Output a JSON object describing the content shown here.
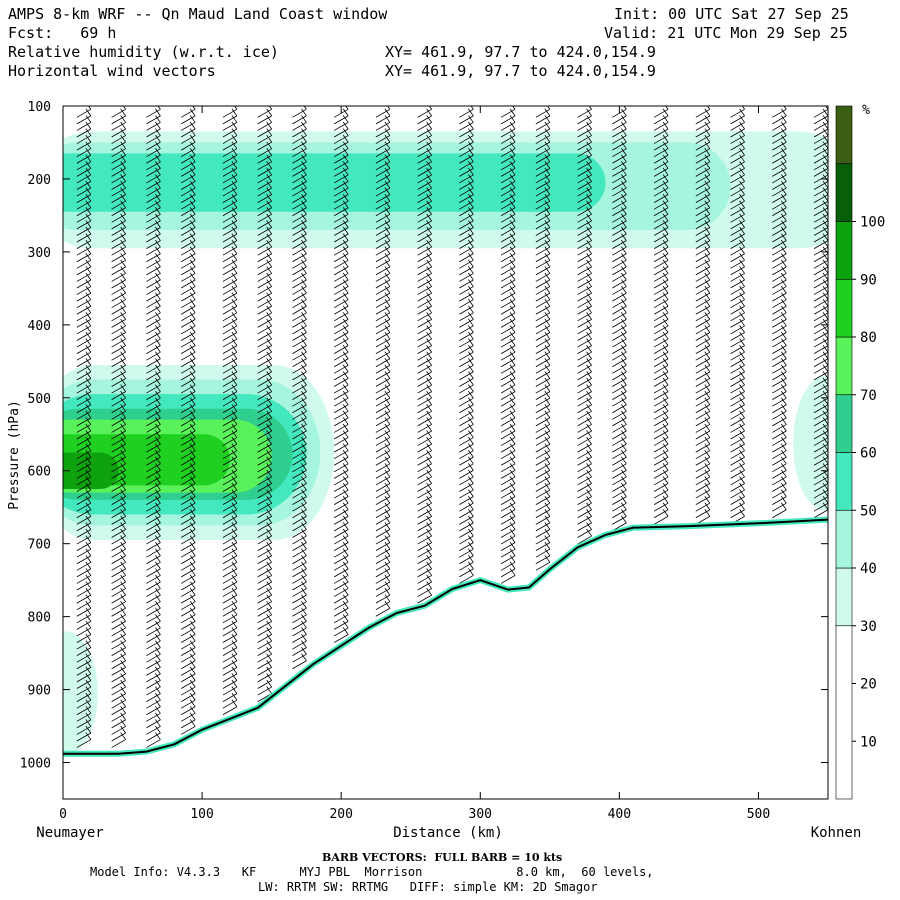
{
  "header": {
    "title": "AMPS 8-km WRF -- Qn Maud Land Coast window",
    "fcst": "Fcst:   69 h",
    "field1": "Relative humidity (w.r.t. ice)",
    "field2": "Horizontal wind vectors",
    "xy1": "XY= 461.9, 97.7 to 424.0,154.9",
    "xy2": "XY= 461.9, 97.7 to 424.0,154.9",
    "init": "Init: 00 UTC Sat 27 Sep 25",
    "valid": "Valid: 21 UTC Mon 29 Sep 25"
  },
  "footer": {
    "barb_note": "BARB VECTORS:  FULL BARB = 10 kts",
    "model_line1": "Model Info: V4.3.3   KF      MYJ PBL  Morrison             8.0 km,  60 levels,",
    "model_line2": "LW: RRTM SW: RRTMG   DIFF: simple KM: 2D Smagor"
  },
  "colors": {
    "c30": "#d0fbec",
    "c40": "#a6f5df",
    "c50": "#44e8be",
    "c60": "#2fd08f",
    "c70": "#5af25a",
    "c80": "#20d020",
    "c90": "#0ea30e",
    "c100": "#075f07",
    "c110": "#3b5f12",
    "terrain": "#000000"
  },
  "chart_data": {
    "type": "heatmap",
    "title": "Relative humidity (w.r.t. ice)",
    "xlabel": "Distance (km)",
    "ylabel": "Pressure (hPa)",
    "xlim": [
      0,
      550
    ],
    "ylim": [
      1050,
      100
    ],
    "x_ticks": [
      0,
      100,
      200,
      300,
      400,
      500
    ],
    "y_ticks": [
      100,
      200,
      300,
      400,
      500,
      600,
      700,
      800,
      900,
      1000
    ],
    "x_end_labels": {
      "left": "Neumayer",
      "right": "Kohnen"
    },
    "colorbar": {
      "unit": "%",
      "ticks": [
        10,
        20,
        30,
        40,
        50,
        60,
        70,
        80,
        90,
        100
      ],
      "levels": [
        {
          "min": 0,
          "max": 30,
          "color": "#ffffff"
        },
        {
          "min": 30,
          "max": 40,
          "color": "#d0fbec"
        },
        {
          "min": 40,
          "max": 50,
          "color": "#a6f5df"
        },
        {
          "min": 50,
          "max": 60,
          "color": "#44e8be"
        },
        {
          "min": 60,
          "max": 70,
          "color": "#2fd08f"
        },
        {
          "min": 70,
          "max": 80,
          "color": "#5af25a"
        },
        {
          "min": 80,
          "max": 90,
          "color": "#20d020"
        },
        {
          "min": 90,
          "max": 100,
          "color": "#0ea30e"
        },
        {
          "min": 100,
          "max": 110,
          "color": "#075f07"
        },
        {
          "min": 110,
          "max": 120,
          "color": "#3b5f12"
        }
      ]
    },
    "terrain_profile": [
      [
        0,
        988
      ],
      [
        40,
        988
      ],
      [
        60,
        985
      ],
      [
        80,
        975
      ],
      [
        100,
        955
      ],
      [
        120,
        940
      ],
      [
        140,
        925
      ],
      [
        160,
        895
      ],
      [
        180,
        865
      ],
      [
        200,
        840
      ],
      [
        220,
        815
      ],
      [
        240,
        795
      ],
      [
        260,
        785
      ],
      [
        280,
        762
      ],
      [
        300,
        750
      ],
      [
        320,
        763
      ],
      [
        335,
        760
      ],
      [
        350,
        735
      ],
      [
        370,
        705
      ],
      [
        390,
        688
      ],
      [
        410,
        678
      ],
      [
        450,
        676
      ],
      [
        500,
        672
      ],
      [
        550,
        667
      ]
    ],
    "humidity_regions": [
      {
        "level": 30,
        "x": [
          0,
          550
        ],
        "p": [
          135,
          295
        ]
      },
      {
        "level": 40,
        "x": [
          0,
          480
        ],
        "p": [
          150,
          270
        ]
      },
      {
        "level": 50,
        "x": [
          0,
          390
        ],
        "p": [
          165,
          245
        ]
      },
      {
        "level": 30,
        "x": [
          0,
          195
        ],
        "p": [
          455,
          695
        ]
      },
      {
        "level": 40,
        "x": [
          0,
          185
        ],
        "p": [
          475,
          675
        ]
      },
      {
        "level": 50,
        "x": [
          0,
          175
        ],
        "p": [
          495,
          660
        ]
      },
      {
        "level": 60,
        "x": [
          0,
          165
        ],
        "p": [
          515,
          640
        ]
      },
      {
        "level": 70,
        "x": [
          0,
          150
        ],
        "p": [
          530,
          630
        ]
      },
      {
        "level": 80,
        "x": [
          0,
          120
        ],
        "p": [
          550,
          620
        ]
      },
      {
        "level": 90,
        "x": [
          0,
          40
        ],
        "p": [
          575,
          625
        ]
      },
      {
        "level": 30,
        "x": [
          525,
          550
        ],
        "p": [
          470,
          655
        ]
      },
      {
        "level": 30,
        "x": [
          0,
          25
        ],
        "p": [
          820,
          990
        ]
      }
    ],
    "wind_columns_km": [
      15,
      40,
      65,
      90,
      120,
      145,
      170,
      200,
      230,
      260,
      290,
      320,
      345,
      375,
      400,
      430,
      460,
      485,
      515,
      545
    ]
  }
}
